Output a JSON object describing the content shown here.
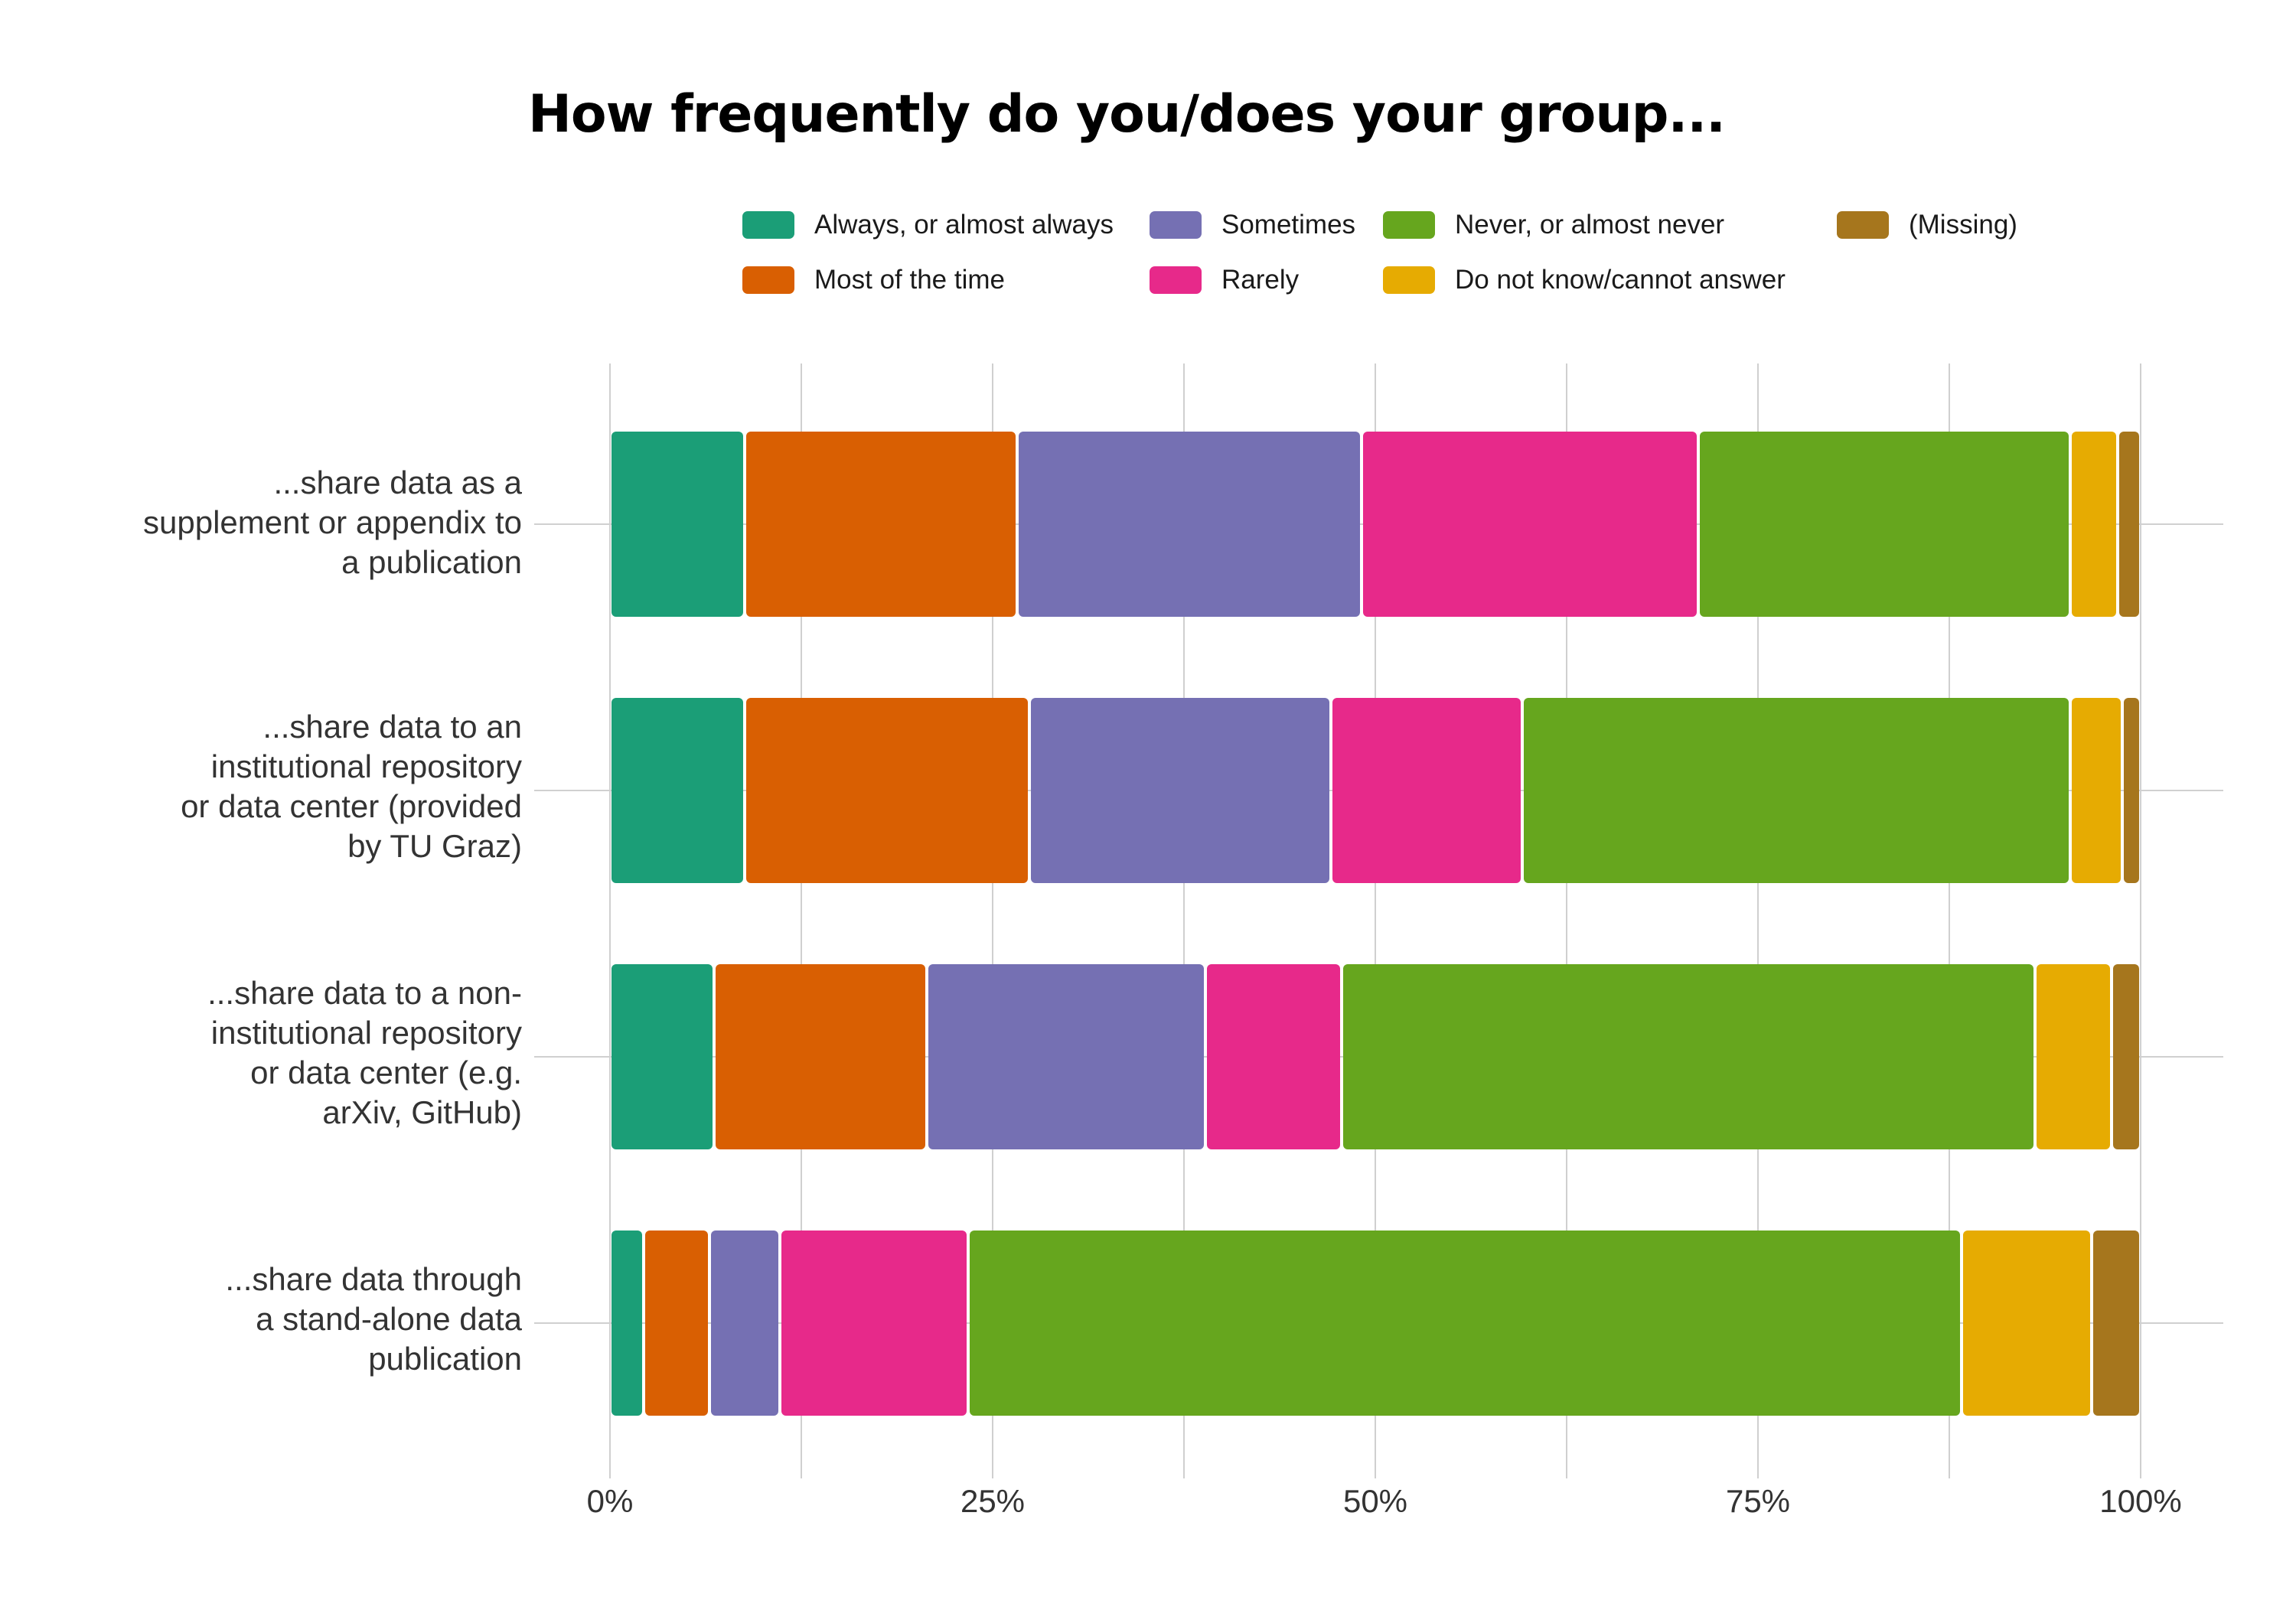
{
  "chart_data": {
    "type": "bar",
    "orientation": "horizontal",
    "stacked": "percent",
    "title": "How frequently do you/does your group...",
    "xlabel": "",
    "ylabel": "",
    "xlim": [
      0,
      100
    ],
    "x_ticks": [
      "0%",
      "25%",
      "50%",
      "75%",
      "100%"
    ],
    "grid": true,
    "legend_position": "top",
    "categories": [
      "...share data as a supplement or appendix to a publication",
      "...share data to an institutional repository or data center (provided by TU Graz)",
      "...share data to a non-institutional repository or data center (e.g. arXiv, GitHub)",
      "...share data through a stand-alone data publication"
    ],
    "category_lines": [
      [
        "...share data as a",
        "supplement or appendix to",
        "a publication"
      ],
      [
        "...share data to an",
        "institutional repository",
        "or data center (provided",
        "by TU Graz)"
      ],
      [
        "...share data to a non-",
        "institutional repository",
        "or data center (e.g.",
        "arXiv, GitHub)"
      ],
      [
        "...share data through",
        "a stand-alone data",
        "publication"
      ]
    ],
    "series": [
      {
        "name": "Always, or almost always",
        "color": "#1b9e77",
        "values": [
          8.8,
          8.8,
          6.8,
          2.2
        ]
      },
      {
        "name": "Most of the time",
        "color": "#d95f02",
        "values": [
          17.8,
          18.6,
          13.9,
          4.3
        ]
      },
      {
        "name": "Sometimes",
        "color": "#7570b3",
        "values": [
          22.5,
          19.7,
          18.2,
          4.6
        ]
      },
      {
        "name": "Rarely",
        "color": "#e7298a",
        "values": [
          22.0,
          12.5,
          8.9,
          12.3
        ]
      },
      {
        "name": "Never, or almost never",
        "color": "#66a61e",
        "values": [
          24.3,
          35.8,
          45.3,
          64.9
        ]
      },
      {
        "name": "Do not know/cannot answer",
        "color": "#e6ab02",
        "values": [
          3.1,
          3.4,
          5.0,
          8.5
        ]
      },
      {
        "name": "(Missing)",
        "color": "#a6761d",
        "values": [
          1.5,
          1.2,
          1.9,
          3.2
        ]
      }
    ]
  }
}
